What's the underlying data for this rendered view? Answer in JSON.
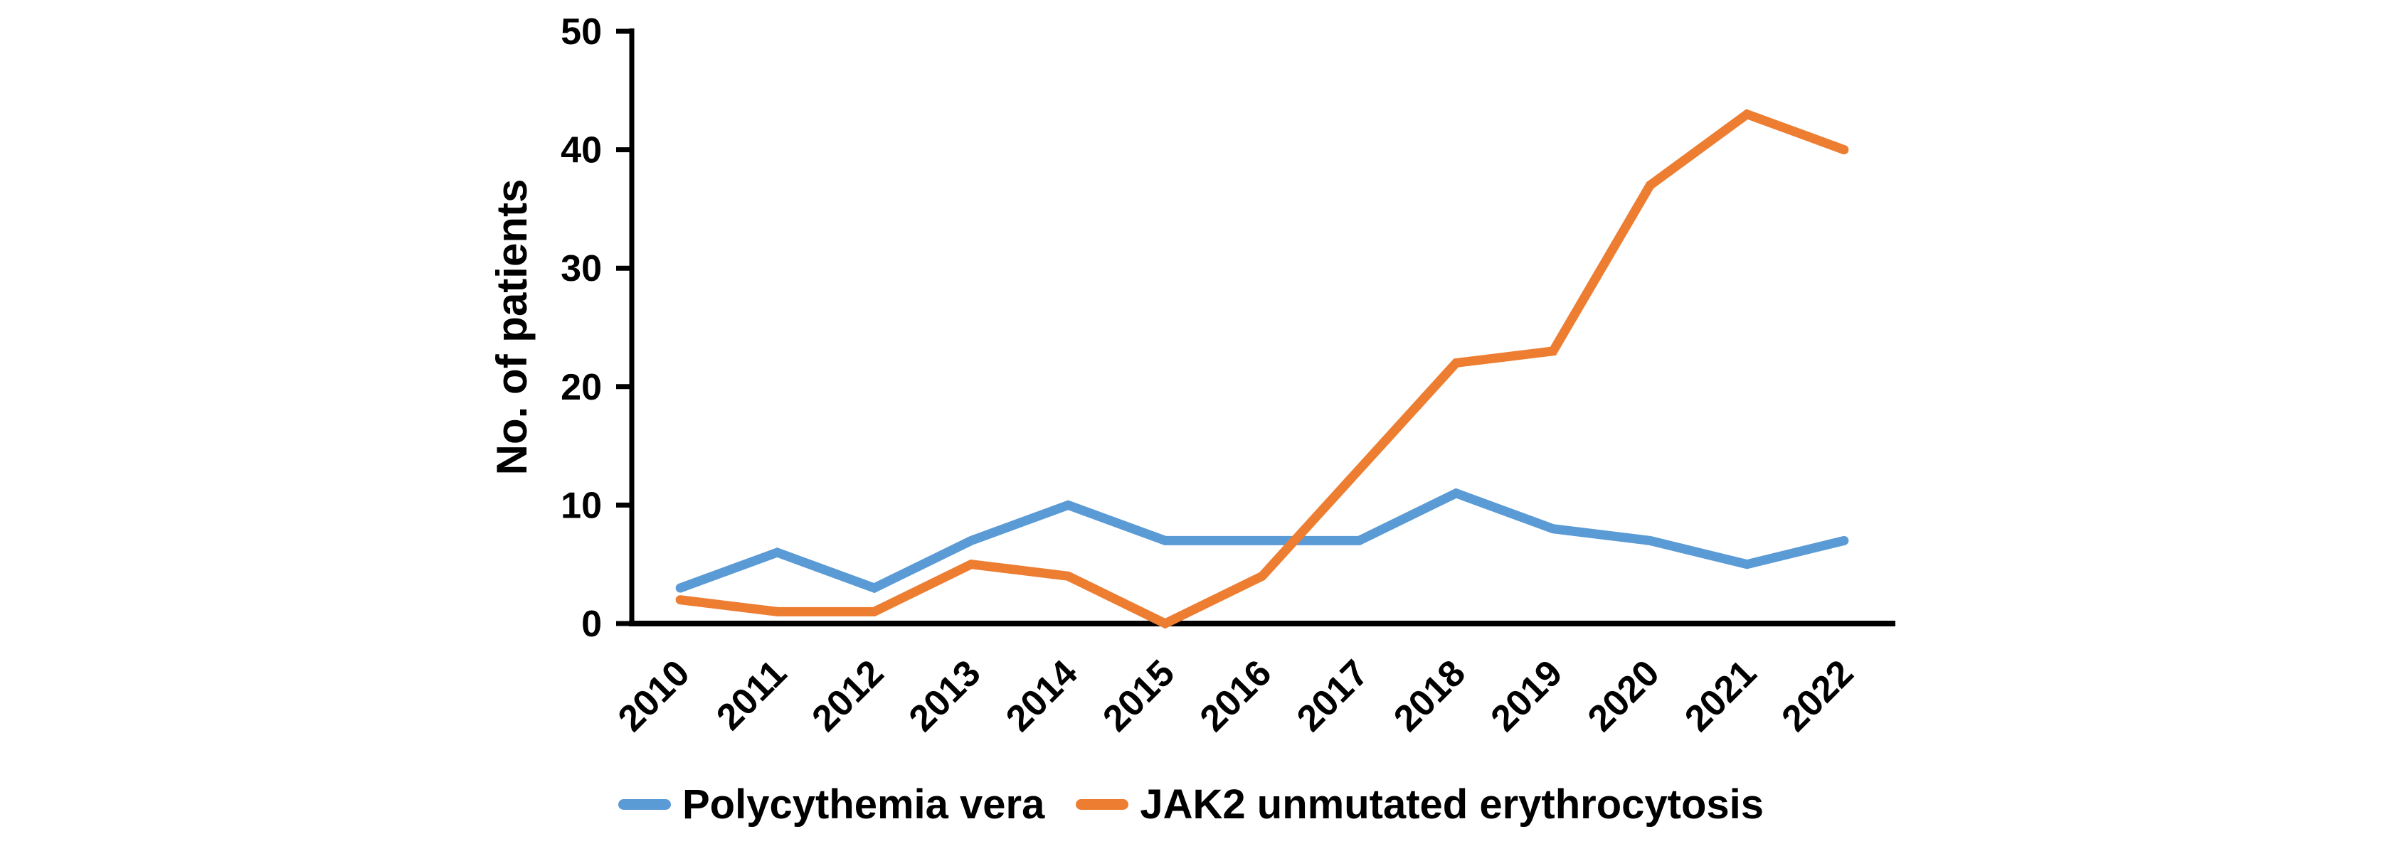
{
  "chart_data": {
    "type": "line",
    "title": "",
    "xlabel": "",
    "ylabel": "No. of patients",
    "categories": [
      "2010",
      "2011",
      "2012",
      "2013",
      "2014",
      "2015",
      "2016",
      "2017",
      "2018",
      "2019",
      "2020",
      "2021",
      "2022"
    ],
    "series": [
      {
        "name": "Polycythemia vera",
        "color": "#5B9BD5",
        "values": [
          3,
          6,
          3,
          7,
          10,
          7,
          7,
          7,
          11,
          8,
          7,
          5,
          7
        ]
      },
      {
        "name": "JAK2 unmutated erythrocytosis",
        "color": "#ED7D31",
        "values": [
          2,
          1,
          1,
          5,
          4,
          0,
          4,
          13,
          22,
          23,
          37,
          43,
          40
        ]
      }
    ],
    "ylim": [
      0,
      50
    ],
    "ytick_step": 10,
    "yticks": [
      0,
      10,
      20,
      30,
      40,
      50
    ],
    "grid": false,
    "legend_position": "bottom",
    "axis_color": "#000000"
  }
}
